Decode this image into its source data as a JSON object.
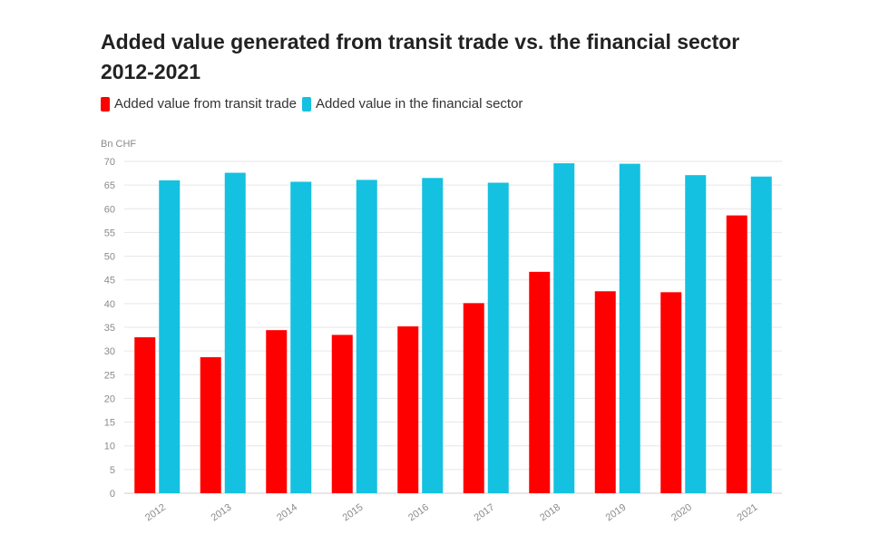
{
  "chart_data": {
    "type": "bar",
    "title": "Added value generated from transit trade vs. the financial sector 2012-2021",
    "ylabel": "Bn CHF",
    "xlabel": "",
    "ylim": [
      0,
      70
    ],
    "yticks": [
      0,
      5,
      10,
      15,
      20,
      25,
      30,
      35,
      40,
      45,
      50,
      55,
      60,
      65,
      70
    ],
    "grid": true,
    "legend_position": "top-left",
    "categories": [
      "2012",
      "2013",
      "2014",
      "2015",
      "2016",
      "2017",
      "2018",
      "2019",
      "2020",
      "2021"
    ],
    "series": [
      {
        "name": "Added value from transit trade",
        "color": "#ff0000",
        "values": [
          32.9,
          28.7,
          34.4,
          33.4,
          35.2,
          40.1,
          46.7,
          42.6,
          42.4,
          58.6
        ]
      },
      {
        "name": "Added value in the financial sector",
        "color": "#14c1e0",
        "values": [
          66.0,
          67.6,
          65.7,
          66.1,
          66.5,
          65.5,
          69.6,
          69.5,
          67.1,
          66.8
        ]
      }
    ]
  }
}
